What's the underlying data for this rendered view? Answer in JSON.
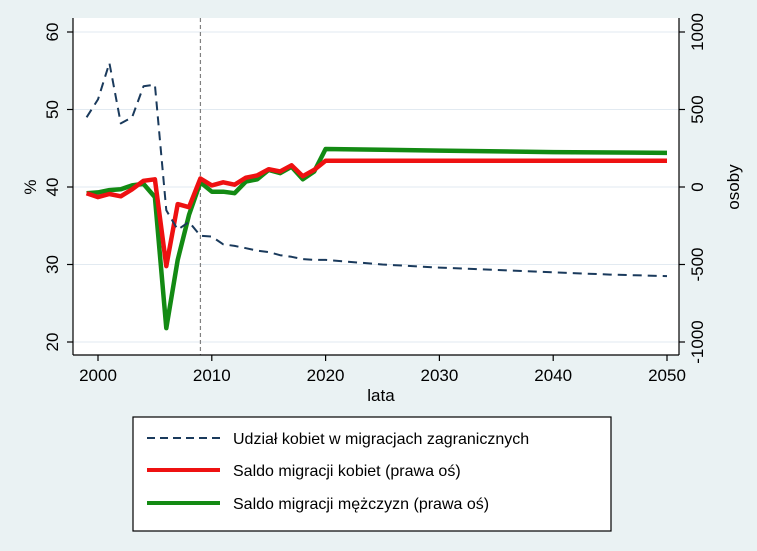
{
  "colors": {
    "background": "#eaf2f3",
    "plot_background": "#ffffff",
    "grid": "#e2eaf1",
    "women_share": "#1a3a5c",
    "women_saldo": "#ee1111",
    "men_saldo": "#138a13",
    "reference_line": "#808080"
  },
  "chart_data": {
    "type": "line",
    "xlabel": "lata",
    "ylabel_left": "%",
    "ylabel_right": "osoby",
    "xlim": [
      1999,
      2050
    ],
    "ylim_left": [
      20,
      60
    ],
    "ylim_right": [
      -1000,
      1000
    ],
    "x_ticks": [
      "2000",
      "2010",
      "2020",
      "2030",
      "2040",
      "2050"
    ],
    "y_left_ticks": [
      "20",
      "30",
      "40",
      "50",
      "60"
    ],
    "y_right_ticks": [
      "-1000",
      "-500",
      "0",
      "500",
      "1000"
    ],
    "grid": "horizontal",
    "reference_line_x": 2009,
    "legend_position": "bottom",
    "series": [
      {
        "name": "Udział kobiet w migracjach zagranicznych",
        "axis": "left",
        "style": "dashed",
        "x": [
          1999,
          2000,
          2001,
          2002,
          2003,
          2004,
          2005,
          2006,
          2007,
          2008,
          2009,
          2010,
          2011,
          2012,
          2013,
          2014,
          2015,
          2016,
          2017,
          2018,
          2019,
          2020,
          2025,
          2030,
          2035,
          2040,
          2045,
          2050
        ],
        "y": [
          49.0,
          51.3,
          56.0,
          48.2,
          49.0,
          53.0,
          53.2,
          37.0,
          34.5,
          35.5,
          33.7,
          33.6,
          32.6,
          32.4,
          32.1,
          31.8,
          31.6,
          31.2,
          31.0,
          30.7,
          30.6,
          30.6,
          30.0,
          29.6,
          29.3,
          29.0,
          28.7,
          28.5
        ]
      },
      {
        "name": "Saldo migracji kobiet (prawa oś)",
        "axis": "right",
        "style": "solid",
        "x": [
          1999,
          2000,
          2001,
          2002,
          2003,
          2004,
          2005,
          2006,
          2007,
          2008,
          2009,
          2010,
          2011,
          2012,
          2013,
          2014,
          2015,
          2016,
          2017,
          2018,
          2019,
          2020,
          2025,
          2030,
          2040,
          2050
        ],
        "y": [
          -40,
          -65,
          -45,
          -60,
          -15,
          40,
          50,
          -510,
          -110,
          -130,
          55,
          10,
          30,
          15,
          60,
          75,
          115,
          100,
          140,
          70,
          110,
          170,
          170,
          170,
          170,
          170
        ]
      },
      {
        "name": "Saldo migracji mężczyzn (prawa oś)",
        "axis": "right",
        "style": "solid",
        "x": [
          1999,
          2000,
          2001,
          2002,
          2003,
          2004,
          2005,
          2006,
          2007,
          2008,
          2009,
          2010,
          2011,
          2012,
          2013,
          2014,
          2015,
          2016,
          2017,
          2018,
          2019,
          2020,
          2025,
          2030,
          2040,
          2050
        ],
        "y": [
          -40,
          -35,
          -20,
          -15,
          10,
          20,
          -65,
          -910,
          -470,
          -180,
          30,
          -30,
          -30,
          -40,
          35,
          50,
          110,
          90,
          130,
          50,
          100,
          245,
          240,
          235,
          225,
          220
        ]
      }
    ]
  }
}
